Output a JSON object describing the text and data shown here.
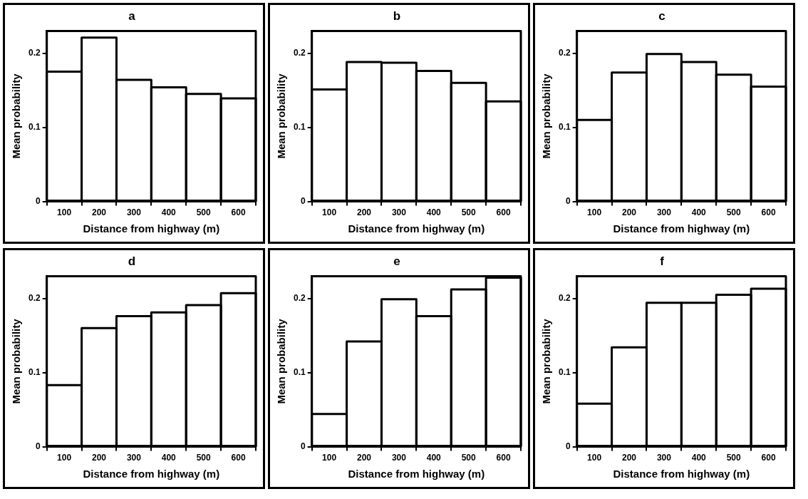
{
  "chart_data": [
    {
      "type": "bar",
      "title": "a",
      "xlabel": "Distance from highway (m)",
      "ylabel": "Mean probability",
      "categories": [
        "100",
        "200",
        "300",
        "400",
        "500",
        "600"
      ],
      "values": [
        0.175,
        0.221,
        0.164,
        0.154,
        0.145,
        0.139
      ],
      "color": "#000000",
      "ylim": [
        0,
        0.23
      ],
      "yticks": [
        0,
        0.1,
        0.2
      ]
    },
    {
      "type": "bar",
      "title": "b",
      "xlabel": "Distance from highway (m)",
      "ylabel": "Mean probability",
      "categories": [
        "100",
        "200",
        "300",
        "400",
        "500",
        "600"
      ],
      "values": [
        0.151,
        0.188,
        0.187,
        0.176,
        0.16,
        0.135
      ],
      "color": "#000000",
      "ylim": [
        0,
        0.23
      ],
      "yticks": [
        0,
        0.1,
        0.2
      ]
    },
    {
      "type": "bar",
      "title": "c",
      "xlabel": "Distance from highway (m)",
      "ylabel": "Mean probability",
      "categories": [
        "100",
        "200",
        "300",
        "400",
        "500",
        "600"
      ],
      "values": [
        0.11,
        0.174,
        0.199,
        0.188,
        0.171,
        0.155
      ],
      "color": "#000000",
      "ylim": [
        0,
        0.23
      ],
      "yticks": [
        0,
        0.1,
        0.2
      ]
    },
    {
      "type": "bar",
      "title": "d",
      "xlabel": "Distance from highway (m)",
      "ylabel": "Mean probability",
      "categories": [
        "100",
        "200",
        "300",
        "400",
        "500",
        "600"
      ],
      "values": [
        0.083,
        0.16,
        0.176,
        0.181,
        0.191,
        0.207
      ],
      "color": "#000000",
      "ylim": [
        0,
        0.23
      ],
      "yticks": [
        0,
        0.1,
        0.2
      ]
    },
    {
      "type": "bar",
      "title": "e",
      "xlabel": "Distance from highway (m)",
      "ylabel": "Mean probability",
      "categories": [
        "100",
        "200",
        "300",
        "400",
        "500",
        "600"
      ],
      "values": [
        0.044,
        0.142,
        0.199,
        0.176,
        0.212,
        0.228
      ],
      "color": "#000000",
      "ylim": [
        0,
        0.23
      ],
      "yticks": [
        0,
        0.1,
        0.2
      ]
    },
    {
      "type": "bar",
      "title": "f",
      "xlabel": "Distance from highway (m)",
      "ylabel": "Mean probability",
      "categories": [
        "100",
        "200",
        "300",
        "400",
        "500",
        "600"
      ],
      "values": [
        0.058,
        0.134,
        0.194,
        0.194,
        0.205,
        0.213
      ],
      "color": "#000000",
      "ylim": [
        0,
        0.23
      ],
      "yticks": [
        0,
        0.1,
        0.2
      ]
    }
  ]
}
